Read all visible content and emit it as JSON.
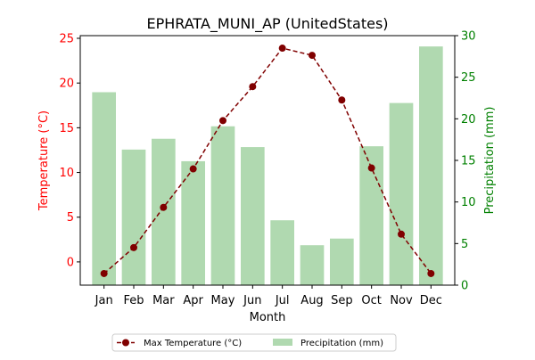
{
  "chart_data": {
    "type": "bar+line",
    "title": "EPHRATA_MUNI_AP (UnitedStates)",
    "xlabel": "Month",
    "categories": [
      "Jan",
      "Feb",
      "Mar",
      "Apr",
      "May",
      "Jun",
      "Jul",
      "Aug",
      "Sep",
      "Oct",
      "Nov",
      "Dec"
    ],
    "y_left": {
      "label": "Temperature (°C)",
      "color": "#ff0000",
      "lim": [
        -2.6,
        25.3
      ],
      "ticks": [
        0,
        5,
        10,
        15,
        20,
        25
      ]
    },
    "y_right": {
      "label": "Precipitation (mm)",
      "color": "#008000",
      "lim": [
        0,
        30
      ],
      "ticks": [
        0,
        5,
        10,
        15,
        20,
        25,
        30
      ]
    },
    "series": [
      {
        "name": "Max Temperature (°C)",
        "type": "line",
        "axis": "left",
        "color": "#800000",
        "line_style": "dashed",
        "marker": "circle",
        "values": [
          -1.3,
          1.6,
          6.1,
          10.4,
          15.8,
          19.6,
          23.9,
          23.1,
          18.1,
          10.5,
          3.1,
          -1.3
        ]
      },
      {
        "name": "Precipitation (mm)",
        "type": "bar",
        "axis": "right",
        "color": "#b0d9b0",
        "values": [
          23.2,
          16.3,
          17.6,
          14.9,
          19.1,
          16.6,
          7.8,
          4.8,
          5.6,
          16.7,
          21.9,
          28.7
        ]
      }
    ],
    "legend": {
      "placement": "bottom-center",
      "entries": [
        "Max Temperature (°C)",
        "Precipitation (mm)"
      ]
    },
    "grid": false
  }
}
